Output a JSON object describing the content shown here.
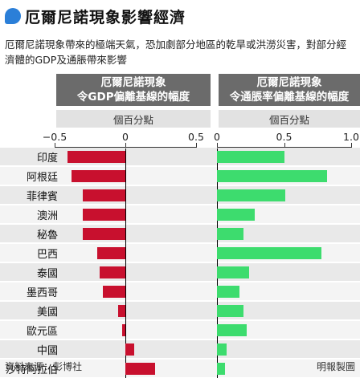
{
  "header": {
    "title": "厄爾尼諾現象影響經濟",
    "subtitle": "厄爾尼諾現象帶來的極端天氣，恐加劇部分地區的乾旱或洪澇災害，對部分經濟體的GDP及通脹帶來影響"
  },
  "footer": {
    "source": "資料來源：彭博社",
    "credit": "明報製圖"
  },
  "colors": {
    "gdp_bar": "#c8102e",
    "inflation_bar": "#3ddc6e",
    "header_bg": "#6b6b6b",
    "title_dot": "#2b7fd8"
  },
  "chart_data": [
    {
      "type": "bar",
      "orientation": "horizontal",
      "title_lines": [
        "厄爾尼諾現象",
        "令GDP偏離基線的幅度"
      ],
      "unit": "個百分點",
      "xlim": [
        -0.5,
        0.5
      ],
      "ticks": [
        "−0.5",
        "0",
        "0.5"
      ],
      "tick_values": [
        -0.5,
        0,
        0.5
      ],
      "categories": [
        "印度",
        "阿根廷",
        "菲律賓",
        "澳洲",
        "秘魯",
        "巴西",
        "泰國",
        "墨西哥",
        "美國",
        "歐元區",
        "中國",
        "沙特阿拉伯"
      ],
      "values": [
        -0.41,
        -0.38,
        -0.3,
        -0.3,
        -0.3,
        -0.2,
        -0.18,
        -0.16,
        -0.05,
        -0.02,
        0.06,
        0.21
      ]
    },
    {
      "type": "bar",
      "orientation": "horizontal",
      "title_lines": [
        "厄爾尼諾現象",
        "令通脹率偏離基線的幅度"
      ],
      "unit": "個百分點",
      "xlim": [
        0,
        1.0
      ],
      "ticks": [
        "0",
        "0.5",
        "1.0"
      ],
      "tick_values": [
        0,
        0.5,
        1.0
      ],
      "categories": [
        "印度",
        "阿根廷",
        "菲律賓",
        "澳洲",
        "秘魯",
        "巴西",
        "泰國",
        "墨西哥",
        "美國",
        "歐元區",
        "中國",
        "沙特阿拉伯"
      ],
      "values": [
        0.5,
        0.82,
        0.51,
        0.28,
        0.2,
        0.78,
        0.24,
        0.17,
        0.2,
        0.22,
        0.07,
        0.06
      ]
    }
  ]
}
